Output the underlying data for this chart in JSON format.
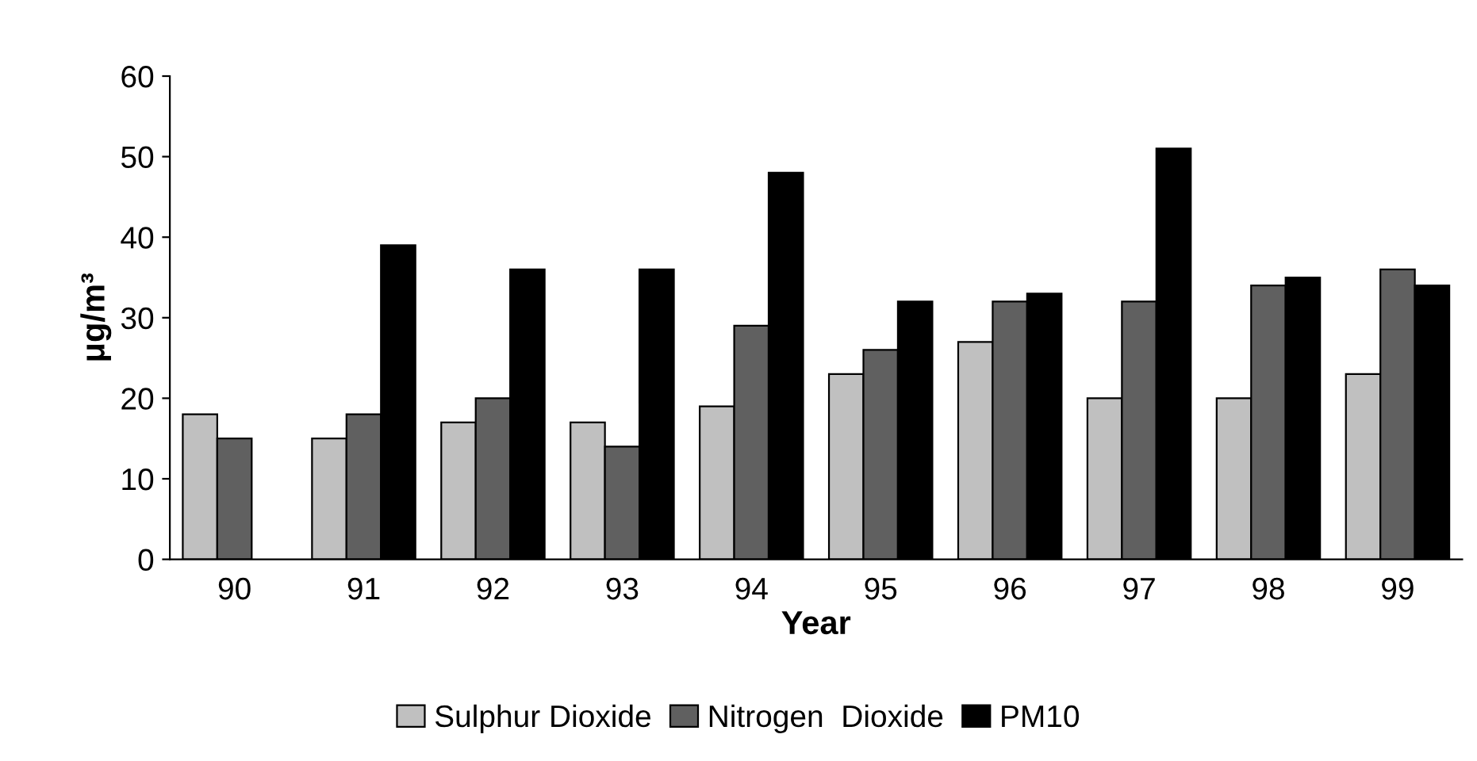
{
  "chart_data": {
    "type": "bar",
    "xlabel": "Year",
    "ylabel": "μg/m³",
    "categories": [
      "90",
      "91",
      "92",
      "93",
      "94",
      "95",
      "96",
      "97",
      "98",
      "99"
    ],
    "series": [
      {
        "name": "Sulphur Dioxide",
        "color": "#c0c0c0",
        "values": [
          18,
          15,
          17,
          17,
          19,
          23,
          27,
          20,
          20,
          23
        ]
      },
      {
        "name": "Nitrogen  Dioxide",
        "color": "#606060",
        "values": [
          15,
          18,
          20,
          14,
          29,
          26,
          32,
          32,
          34,
          36
        ]
      },
      {
        "name": "PM10",
        "color": "#000000",
        "values": [
          null,
          39,
          36,
          36,
          48,
          32,
          33,
          51,
          35,
          34
        ]
      }
    ],
    "ylim": [
      0,
      60
    ],
    "yticks": [
      0,
      10,
      20,
      30,
      40,
      50,
      60
    ],
    "grid": false,
    "legend": "bottom"
  }
}
